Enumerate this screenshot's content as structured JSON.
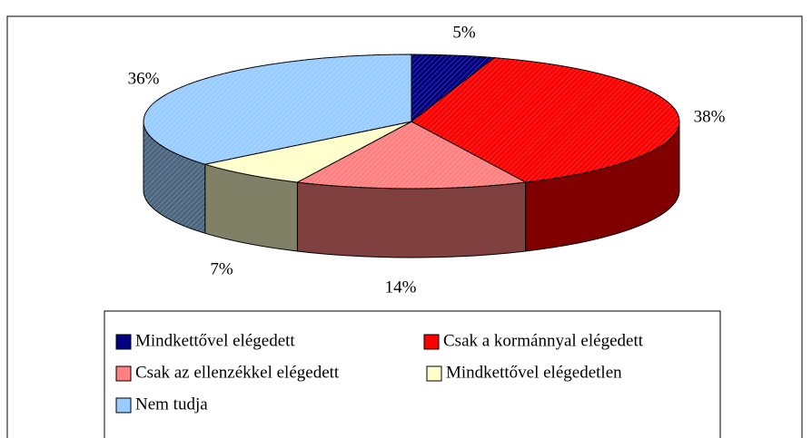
{
  "chart_data": {
    "type": "pie",
    "categories": [
      "Mindkettővel elégedett",
      "Csak a kormánnyal elégedett",
      "Csak az ellenzékkel elégedett",
      "Mindkettővel elégedetlen",
      "Nem tudja"
    ],
    "values": [
      5,
      38,
      14,
      7,
      36
    ],
    "value_labels": [
      "5%",
      "38%",
      "14%",
      "7%",
      "36%"
    ],
    "colors": [
      "#000080",
      "#ff0000",
      "#ff8080",
      "#ffffcc",
      "#99ccff"
    ],
    "legend": "bottom"
  }
}
